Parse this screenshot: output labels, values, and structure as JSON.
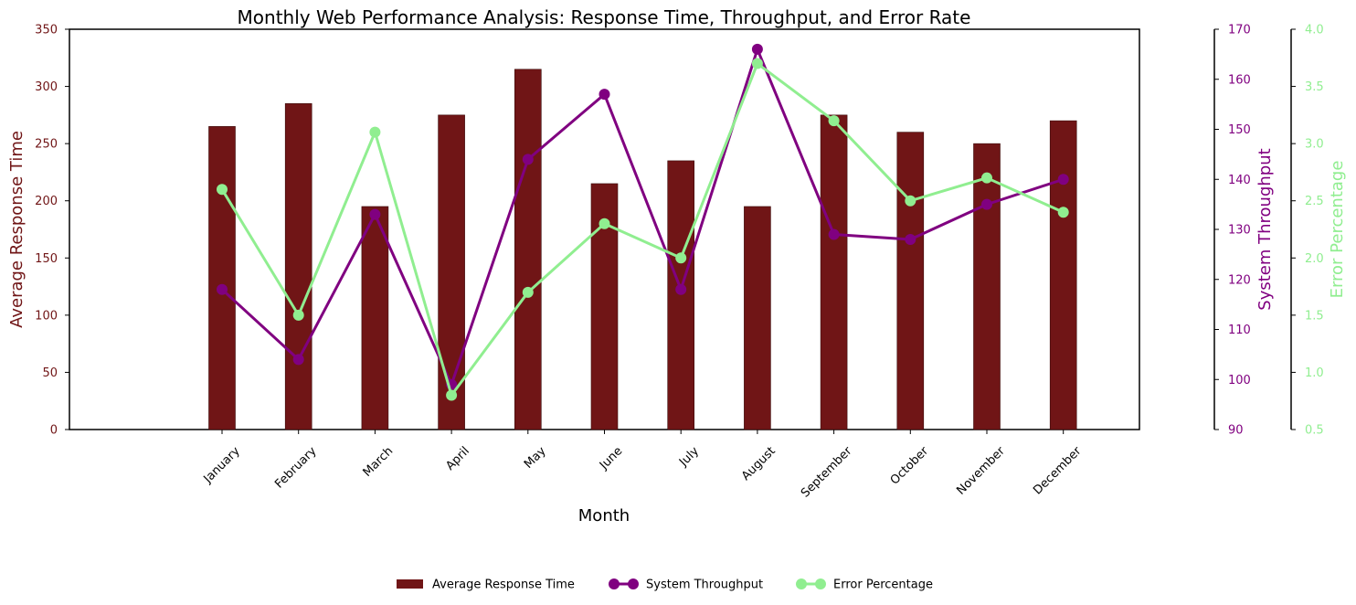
{
  "chart_data": {
    "type": "bar",
    "title": "Monthly Web Performance Analysis: Response Time, Throughput, and Error Rate",
    "xlabel": "Month",
    "categories": [
      "January",
      "February",
      "March",
      "April",
      "May",
      "June",
      "July",
      "August",
      "September",
      "October",
      "November",
      "December"
    ],
    "series": [
      {
        "name": "Average Response Time",
        "type": "bar",
        "axis": "left",
        "color": "#701516",
        "values": [
          265,
          285,
          195,
          275,
          315,
          215,
          235,
          195,
          275,
          260,
          250,
          270
        ]
      },
      {
        "name": "System Throughput",
        "type": "line",
        "axis": "right",
        "color": "#800080",
        "values": [
          118,
          104,
          133,
          99,
          144,
          157,
          118,
          166,
          129,
          128,
          135,
          140
        ]
      },
      {
        "name": "Error Percentage",
        "type": "line",
        "axis": "right2",
        "color": "#90ee90",
        "values": [
          2.6,
          1.5,
          3.1,
          0.8,
          1.7,
          2.3,
          2.0,
          3.7,
          3.2,
          2.5,
          2.7,
          2.4
        ]
      }
    ],
    "axes": {
      "left": {
        "label": "Average Response Time",
        "ylim": [
          0,
          350
        ],
        "ticks": [
          "0",
          "50",
          "100",
          "150",
          "200",
          "250",
          "300",
          "350"
        ],
        "color": "#701516"
      },
      "right": {
        "label": "System Throughput",
        "ylim": [
          90,
          170
        ],
        "ticks": [
          "90",
          "100",
          "110",
          "120",
          "130",
          "140",
          "150",
          "160",
          "170"
        ],
        "color": "#800080"
      },
      "right2": {
        "label": "Error Percentage",
        "ylim": [
          0.5,
          4.0
        ],
        "ticks": [
          "0.5",
          "1.0",
          "1.5",
          "2.0",
          "2.5",
          "3.0",
          "3.5",
          "4.0"
        ],
        "color": "#90ee90"
      }
    },
    "grid": false,
    "legend": {
      "placement": "bottom-center",
      "entries": [
        "Average Response Time",
        "System Throughput",
        "Error Percentage"
      ]
    }
  }
}
